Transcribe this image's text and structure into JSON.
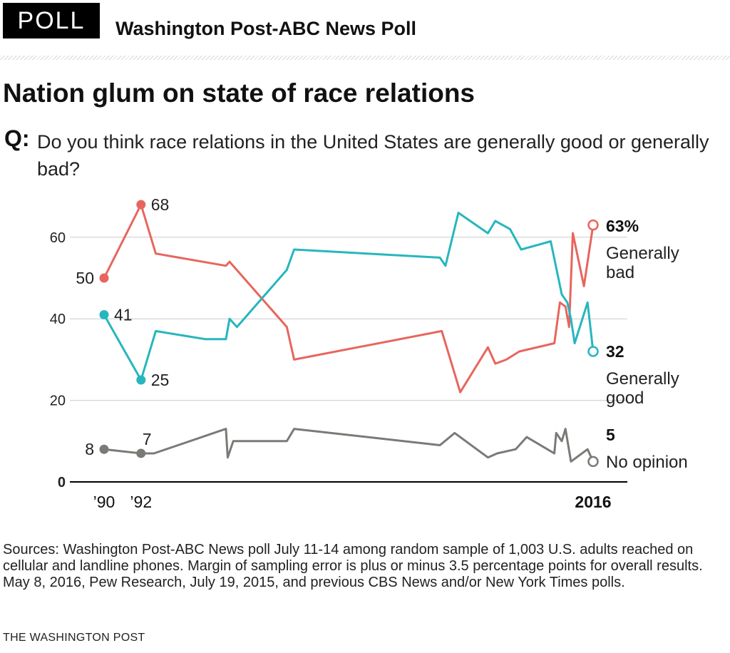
{
  "header": {
    "badge": "POLL",
    "poll_name": "Washington Post-ABC News Poll"
  },
  "headline": "Nation glum on state of race relations",
  "question": {
    "label": "Q:",
    "text": "Do you think race relations in the United States are generally good or generally bad?"
  },
  "colors": {
    "bad": "#e8655e",
    "good": "#27b6bd",
    "no_opinion": "#7a7a76",
    "grid": "#cccccc",
    "axis": "#000000"
  },
  "chart_data": {
    "type": "line",
    "ylim": [
      0,
      70
    ],
    "xlim": [
      1990.0,
      2016.8
    ],
    "grid": true,
    "y_ticks": [
      {
        "value": 0,
        "label": "0"
      },
      {
        "value": 20,
        "label": "20"
      },
      {
        "value": 40,
        "label": "40"
      },
      {
        "value": 60,
        "label": "60"
      }
    ],
    "x_ticks": [
      {
        "value": 1990.0,
        "label": "’90"
      },
      {
        "value": 1992.0,
        "label": "’92"
      },
      {
        "value": 2016.5,
        "label": "2016"
      }
    ],
    "series": [
      {
        "key": "bad",
        "name": "Generally bad",
        "end_label": "63%",
        "points": [
          [
            1990.0,
            50
          ],
          [
            1992.0,
            68
          ],
          [
            1992.8,
            56
          ],
          [
            1996.6,
            53
          ],
          [
            1996.8,
            54
          ],
          [
            1999.9,
            38
          ],
          [
            2000.3,
            30
          ],
          [
            2008.3,
            37
          ],
          [
            2009.3,
            22
          ],
          [
            2010.8,
            33
          ],
          [
            2011.2,
            29
          ],
          [
            2011.8,
            30
          ],
          [
            2012.5,
            32
          ],
          [
            2014.4,
            34
          ],
          [
            2014.7,
            44
          ],
          [
            2015.0,
            43
          ],
          [
            2015.2,
            38
          ],
          [
            2015.4,
            61
          ],
          [
            2016.0,
            48
          ],
          [
            2016.5,
            63
          ]
        ],
        "point_labels": [
          {
            "index": 0,
            "text": "50",
            "pos": "left"
          },
          {
            "index": 1,
            "text": "68",
            "pos": "right"
          }
        ]
      },
      {
        "key": "good",
        "name": "Generally good",
        "end_label": "32",
        "points": [
          [
            1990.0,
            41
          ],
          [
            1992.0,
            25
          ],
          [
            1992.8,
            37
          ],
          [
            1995.5,
            35
          ],
          [
            1996.6,
            35
          ],
          [
            1996.8,
            40
          ],
          [
            1997.2,
            38
          ],
          [
            1999.9,
            52
          ],
          [
            2000.3,
            57
          ],
          [
            2008.2,
            55
          ],
          [
            2008.5,
            53
          ],
          [
            2009.2,
            66
          ],
          [
            2010.8,
            61
          ],
          [
            2011.2,
            64
          ],
          [
            2012.0,
            62
          ],
          [
            2012.6,
            57
          ],
          [
            2014.2,
            59
          ],
          [
            2014.8,
            46
          ],
          [
            2015.1,
            44
          ],
          [
            2015.3,
            40
          ],
          [
            2015.5,
            34
          ],
          [
            2016.2,
            44
          ],
          [
            2016.5,
            32
          ]
        ],
        "point_labels": [
          {
            "index": 0,
            "text": "41",
            "pos": "right"
          },
          {
            "index": 1,
            "text": "25",
            "pos": "right"
          }
        ]
      },
      {
        "key": "no_opinion",
        "name": "No opinion",
        "end_label": "5",
        "points": [
          [
            1990.0,
            8
          ],
          [
            1992.0,
            7
          ],
          [
            1992.7,
            7
          ],
          [
            1996.6,
            13
          ],
          [
            1996.7,
            6
          ],
          [
            1997.0,
            10
          ],
          [
            1999.9,
            10
          ],
          [
            2000.3,
            13
          ],
          [
            2008.2,
            9
          ],
          [
            2009.0,
            12
          ],
          [
            2010.8,
            6
          ],
          [
            2011.3,
            7
          ],
          [
            2012.3,
            8
          ],
          [
            2012.9,
            11
          ],
          [
            2014.4,
            7
          ],
          [
            2014.5,
            12
          ],
          [
            2014.8,
            10
          ],
          [
            2015.0,
            13
          ],
          [
            2015.3,
            5
          ],
          [
            2016.2,
            8
          ],
          [
            2016.5,
            5
          ]
        ],
        "point_labels": [
          {
            "index": 0,
            "text": "8",
            "pos": "left"
          },
          {
            "index": 1,
            "text": "7",
            "pos": "above"
          }
        ]
      }
    ]
  },
  "sources": "Sources: Washington Post-ABC News poll July 11-14 among random sample of 1,003 U.S. adults reached on cellular and landline phones. Margin of sampling error is plus or minus 3.5 percentage points for overall results. May 8, 2016, Pew Research, July 19, 2015, and previous CBS News and/or New York Times polls.",
  "credit": "THE WASHINGTON POST"
}
